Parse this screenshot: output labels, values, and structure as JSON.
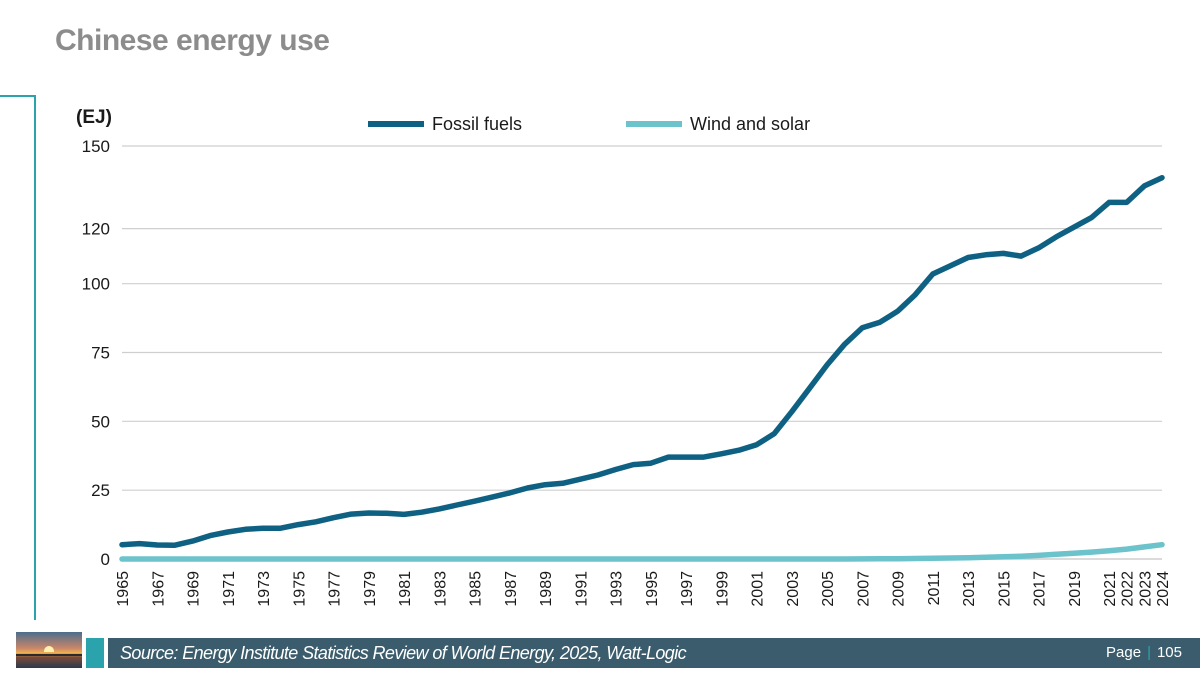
{
  "title": "Chinese energy use",
  "footer": {
    "source": "Source: Energy Institute Statistics Review of World Energy, 2025, Watt-Logic",
    "page_label": "Page",
    "page_number": "105"
  },
  "colors": {
    "fossil": "#0f6183",
    "renewables": "#6cc3cb",
    "grid": "#cfcfcf",
    "accent": "#2aa3ad"
  },
  "chart_data": {
    "type": "line",
    "ylabel": "(EJ)",
    "ylim": [
      0,
      150
    ],
    "yticks": [
      0,
      25,
      50,
      75,
      100,
      120,
      150
    ],
    "grid": true,
    "legend_position": "top-center",
    "xlim": [
      1965,
      2024
    ],
    "x_tick_labels": [
      "1965",
      "1967",
      "1969",
      "1971",
      "1973",
      "1975",
      "1977",
      "1979",
      "1981",
      "1983",
      "1985",
      "1987",
      "1989",
      "1991",
      "1993",
      "1995",
      "1997",
      "1999",
      "2001",
      "2003",
      "2005",
      "2007",
      "2009",
      "2011",
      "2013",
      "2015",
      "2017",
      "2019",
      "2021",
      "2022",
      "2023",
      "2024"
    ],
    "x": [
      1965,
      1966,
      1967,
      1968,
      1969,
      1970,
      1971,
      1972,
      1973,
      1974,
      1975,
      1976,
      1977,
      1978,
      1979,
      1980,
      1981,
      1982,
      1983,
      1984,
      1985,
      1986,
      1987,
      1988,
      1989,
      1990,
      1991,
      1992,
      1993,
      1994,
      1995,
      1996,
      1997,
      1998,
      1999,
      2000,
      2001,
      2002,
      2003,
      2004,
      2005,
      2006,
      2007,
      2008,
      2009,
      2010,
      2011,
      2012,
      2013,
      2014,
      2015,
      2016,
      2017,
      2018,
      2019,
      2020,
      2021,
      2022,
      2023,
      2024
    ],
    "series": [
      {
        "name": "Fossil fuels",
        "color": "#0f6183",
        "values": [
          5.2,
          5.6,
          5.1,
          5.0,
          6.5,
          8.5,
          9.8,
          10.8,
          11.2,
          11.2,
          12.5,
          13.5,
          15.0,
          16.3,
          16.7,
          16.6,
          16.2,
          17.0,
          18.2,
          19.6,
          21.0,
          22.5,
          24.0,
          25.8,
          27.0,
          27.5,
          29.0,
          30.5,
          32.5,
          34.3,
          34.8,
          37.0,
          37.0,
          37.0,
          38.2,
          39.5,
          41.5,
          45.5,
          53.5,
          62.0,
          70.5,
          78.0,
          84.0,
          86.0,
          90.0,
          96.0,
          103.5,
          106.5,
          109.5,
          110.5,
          111.0,
          110.0,
          113.0,
          117.0,
          120.5,
          124.0,
          129.5,
          129.5,
          135.5,
          138.5
        ]
      },
      {
        "name": "Wind and solar",
        "color": "#6cc3cb",
        "values": [
          0,
          0,
          0,
          0,
          0,
          0,
          0,
          0,
          0,
          0,
          0,
          0,
          0,
          0,
          0,
          0,
          0,
          0,
          0,
          0,
          0,
          0,
          0,
          0,
          0,
          0,
          0,
          0,
          0,
          0,
          0,
          0,
          0,
          0,
          0,
          0,
          0,
          0,
          0,
          0,
          0,
          0,
          0.05,
          0.08,
          0.12,
          0.18,
          0.25,
          0.35,
          0.45,
          0.6,
          0.8,
          1.0,
          1.3,
          1.7,
          2.1,
          2.5,
          3.0,
          3.6,
          4.4,
          5.2
        ]
      }
    ]
  }
}
